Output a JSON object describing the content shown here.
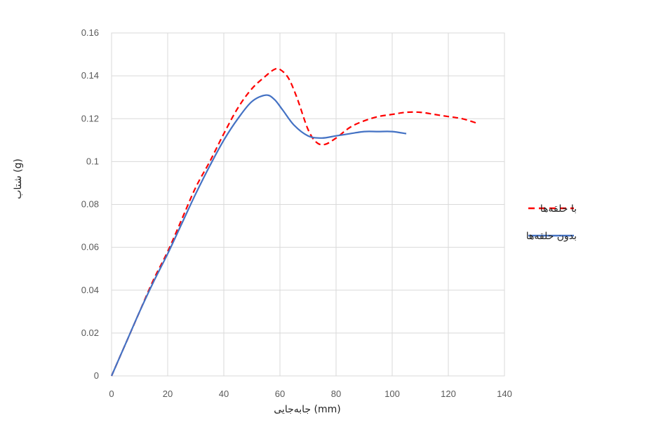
{
  "chart_data": {
    "type": "line",
    "xlabel": "جابه‌جایی (mm)",
    "ylabel": "شتاب (g)",
    "xlim": [
      0,
      140
    ],
    "ylim": [
      0,
      0.16
    ],
    "xticks": [
      0,
      20,
      40,
      60,
      80,
      100,
      120,
      140
    ],
    "yticks": [
      0,
      0.02,
      0.04,
      0.06,
      0.08,
      0.1,
      0.12,
      0.14,
      0.16
    ],
    "xtick_labels": [
      "0",
      "20",
      "40",
      "60",
      "80",
      "100",
      "120",
      "140"
    ],
    "ytick_labels": [
      "0",
      "0.02",
      "0.04",
      "0.06",
      "0.08",
      "0.1",
      "0.12",
      "0.14",
      "0.16"
    ],
    "grid": true,
    "legend_position": "right",
    "series": [
      {
        "name": "با حلقه‌ها",
        "color": "#ff0000",
        "style": "dashed",
        "x": [
          0,
          5,
          10,
          15,
          20,
          25,
          30,
          35,
          40,
          45,
          50,
          55,
          58,
          60,
          63,
          66,
          70,
          73,
          76,
          80,
          85,
          90,
          95,
          100,
          105,
          110,
          115,
          120,
          125,
          130
        ],
        "y": [
          0,
          0.015,
          0.03,
          0.045,
          0.058,
          0.073,
          0.088,
          0.1,
          0.113,
          0.125,
          0.134,
          0.14,
          0.143,
          0.143,
          0.139,
          0.13,
          0.115,
          0.109,
          0.108,
          0.111,
          0.116,
          0.119,
          0.121,
          0.122,
          0.123,
          0.123,
          0.122,
          0.121,
          0.12,
          0.118
        ]
      },
      {
        "name": "بدون حلقه‌ها",
        "color": "#4472c4",
        "style": "solid",
        "x": [
          0,
          5,
          10,
          15,
          20,
          25,
          30,
          35,
          40,
          45,
          50,
          55,
          58,
          61,
          65,
          70,
          75,
          80,
          85,
          90,
          95,
          100,
          105
        ],
        "y": [
          0,
          0.015,
          0.03,
          0.044,
          0.057,
          0.071,
          0.085,
          0.098,
          0.11,
          0.12,
          0.128,
          0.131,
          0.129,
          0.124,
          0.117,
          0.112,
          0.111,
          0.112,
          0.113,
          0.114,
          0.114,
          0.114,
          0.113
        ]
      }
    ]
  }
}
